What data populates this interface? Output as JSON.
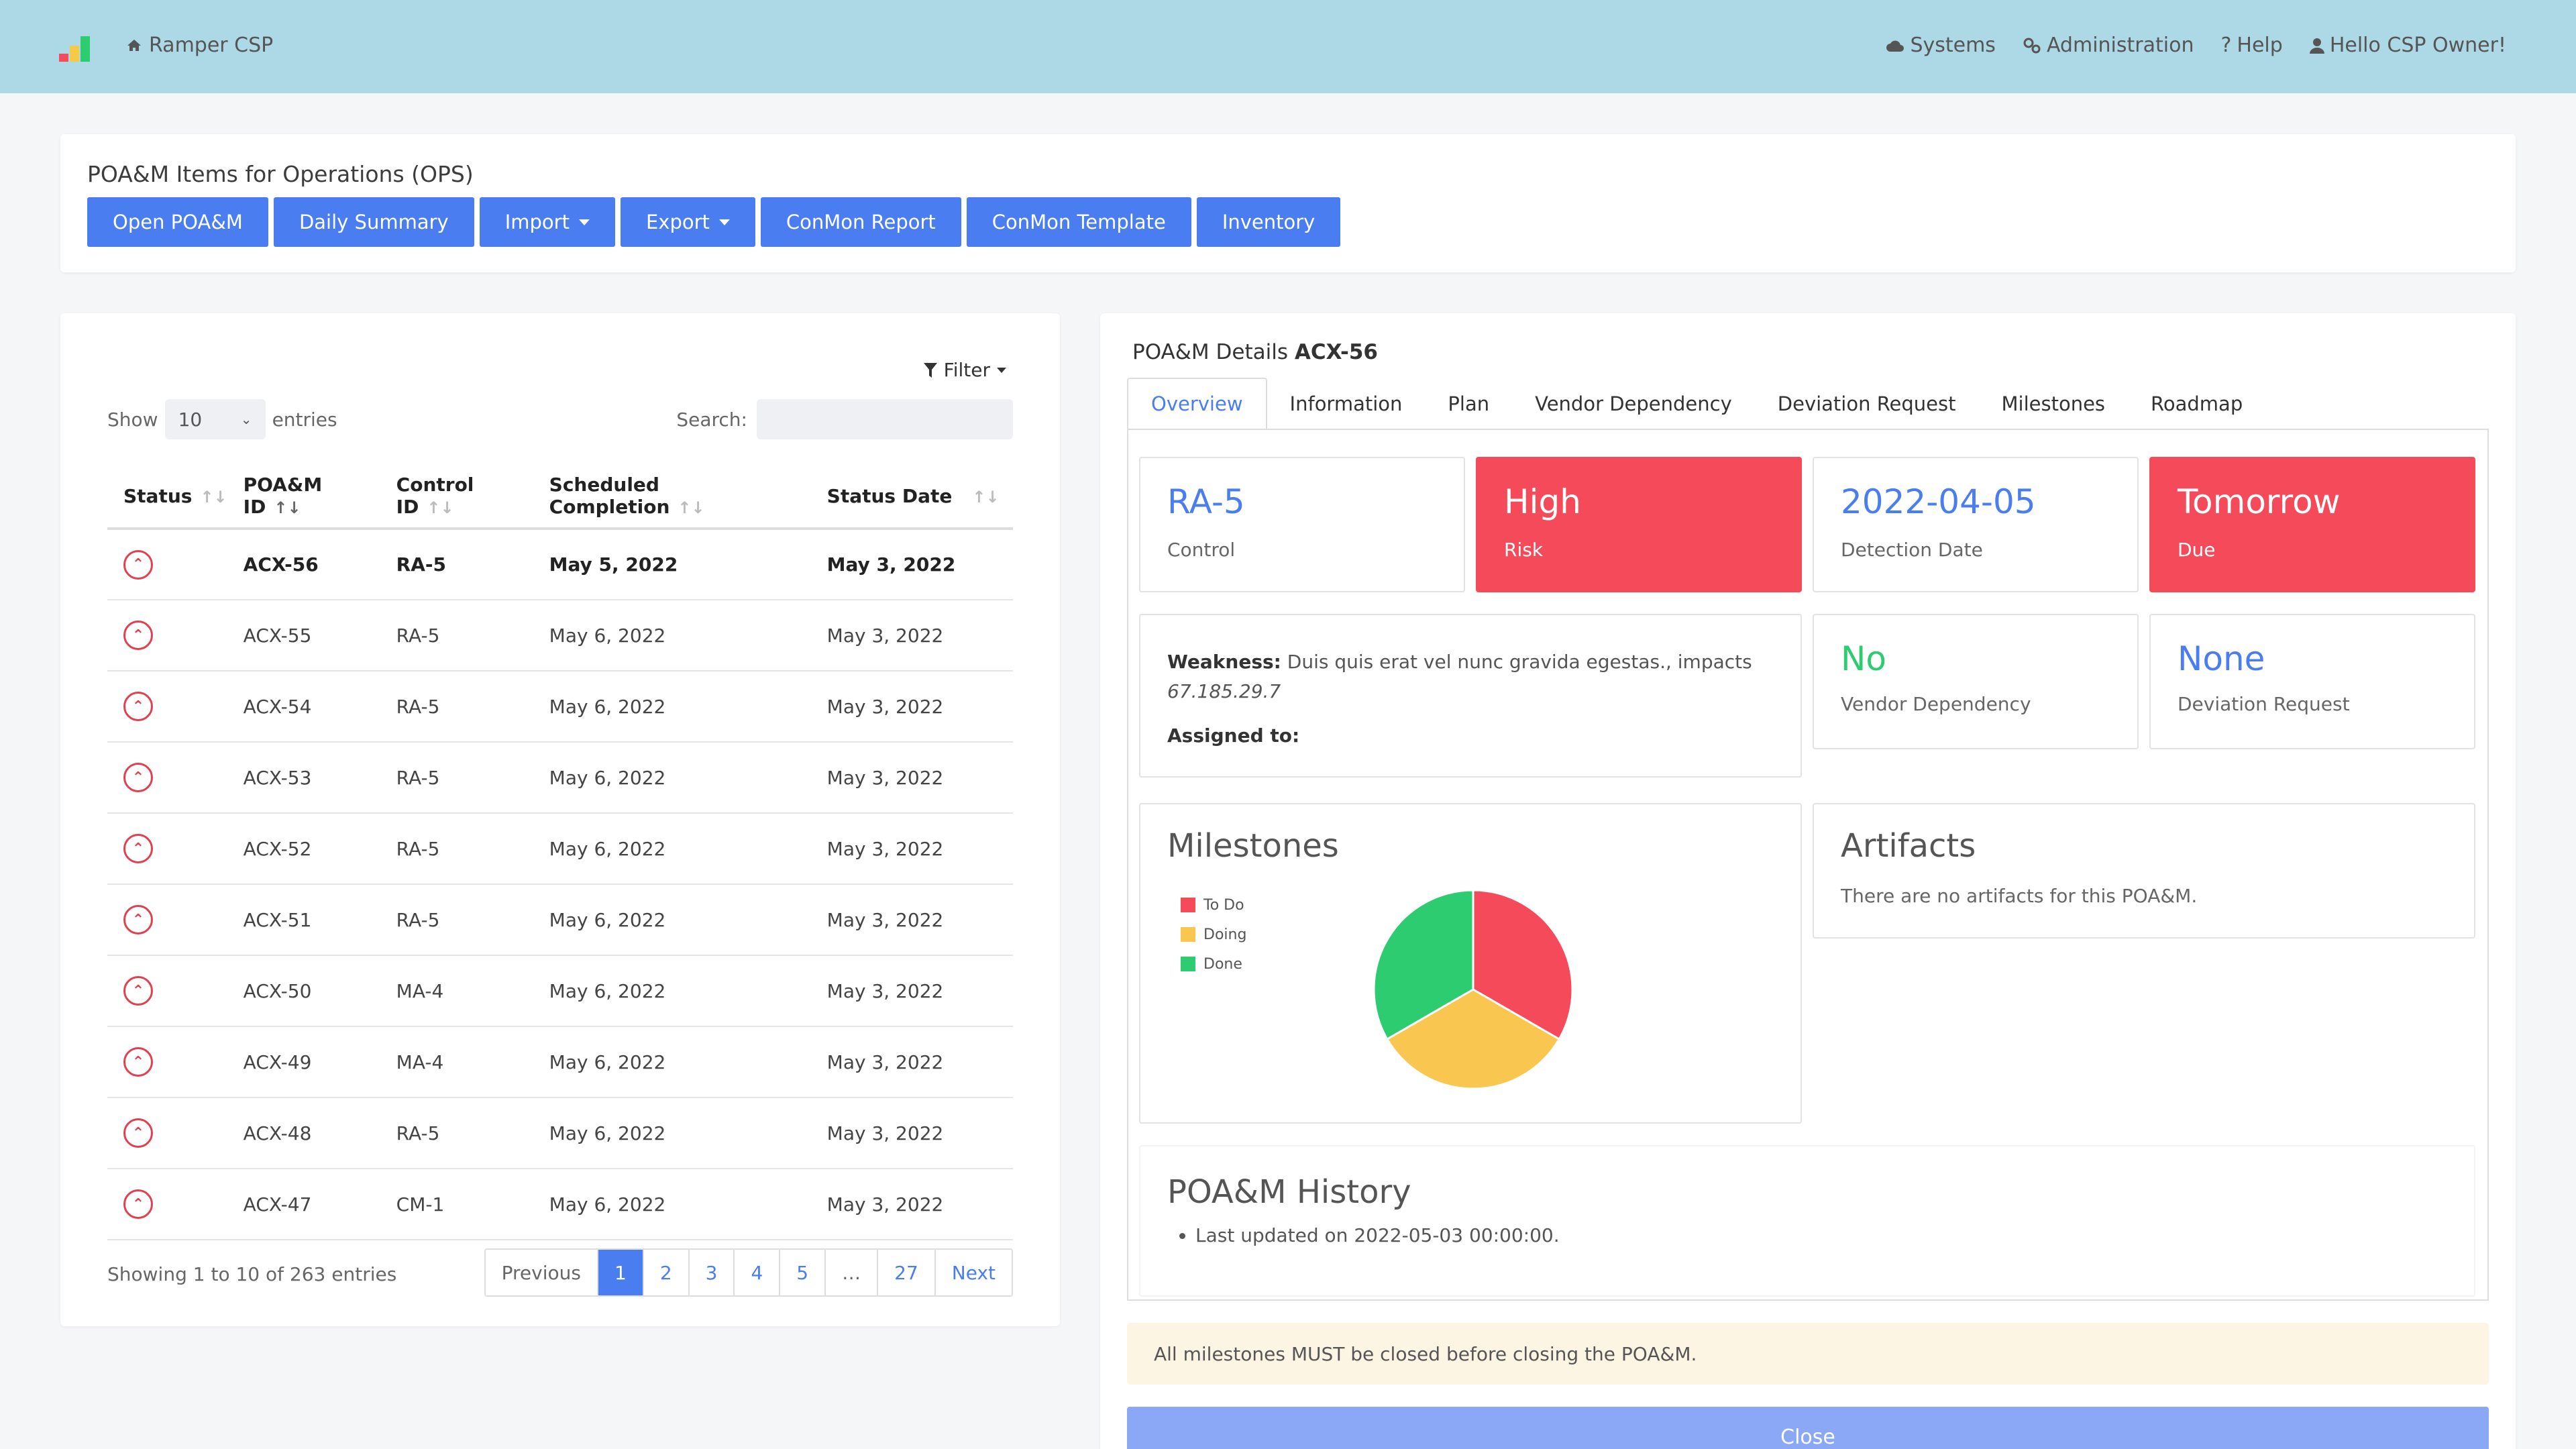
{
  "topbar": {
    "brand": "Ramper CSP",
    "nav": [
      {
        "label": "Systems",
        "icon": "cloud-icon"
      },
      {
        "label": "Administration",
        "icon": "gears-icon"
      },
      {
        "label": "Help",
        "icon": "question-icon"
      },
      {
        "label": "Hello CSP Owner!",
        "icon": "user-icon"
      }
    ],
    "logo_colors": [
      "#f54a5a",
      "#f7c948",
      "#2ecc71"
    ]
  },
  "header": {
    "title": "POA&M Items for Operations (OPS)",
    "buttons": [
      "Open POA&M",
      "Daily Summary",
      "Import",
      "Export",
      "ConMon Report",
      "ConMon Template",
      "Inventory"
    ]
  },
  "list": {
    "filter_label": "Filter",
    "show_label": "Show",
    "entries_label": "entries",
    "page_size": "10",
    "search_label": "Search:",
    "columns": [
      "Status",
      "POA&M ID",
      "Control ID",
      "Scheduled Completion",
      "Status Date"
    ],
    "rows": [
      {
        "id": "ACX-56",
        "control": "RA-5",
        "scheduled": "May 5, 2022",
        "status_date": "May 3, 2022"
      },
      {
        "id": "ACX-55",
        "control": "RA-5",
        "scheduled": "May 6, 2022",
        "status_date": "May 3, 2022"
      },
      {
        "id": "ACX-54",
        "control": "RA-5",
        "scheduled": "May 6, 2022",
        "status_date": "May 3, 2022"
      },
      {
        "id": "ACX-53",
        "control": "RA-5",
        "scheduled": "May 6, 2022",
        "status_date": "May 3, 2022"
      },
      {
        "id": "ACX-52",
        "control": "RA-5",
        "scheduled": "May 6, 2022",
        "status_date": "May 3, 2022"
      },
      {
        "id": "ACX-51",
        "control": "RA-5",
        "scheduled": "May 6, 2022",
        "status_date": "May 3, 2022"
      },
      {
        "id": "ACX-50",
        "control": "MA-4",
        "scheduled": "May 6, 2022",
        "status_date": "May 3, 2022"
      },
      {
        "id": "ACX-49",
        "control": "MA-4",
        "scheduled": "May 6, 2022",
        "status_date": "May 3, 2022"
      },
      {
        "id": "ACX-48",
        "control": "RA-5",
        "scheduled": "May 6, 2022",
        "status_date": "May 3, 2022"
      },
      {
        "id": "ACX-47",
        "control": "CM-1",
        "scheduled": "May 6, 2022",
        "status_date": "May 3, 2022"
      }
    ],
    "showing": "Showing 1 to 10 of 263 entries",
    "pager": [
      "Previous",
      "1",
      "2",
      "3",
      "4",
      "5",
      "…",
      "27",
      "Next"
    ],
    "active_page": "1"
  },
  "details": {
    "title_prefix": "POA&M Details",
    "poam_id": "ACX-56",
    "tabs": [
      "Overview",
      "Information",
      "Plan",
      "Vendor Dependency",
      "Deviation Request",
      "Milestones",
      "Roadmap"
    ],
    "active_tab": "Overview",
    "tiles": [
      {
        "value": "RA-5",
        "label": "Control",
        "style": "plain",
        "color": "#4a7df0"
      },
      {
        "value": "High",
        "label": "Risk",
        "style": "red"
      },
      {
        "value": "2022-04-05",
        "label": "Detection Date",
        "style": "plain",
        "color": "#4a7df0"
      },
      {
        "value": "Tomorrow",
        "label": "Due",
        "style": "red"
      }
    ],
    "weakness_label": "Weakness:",
    "weakness_text": "Duis quis erat vel nunc gravida egestas., impacts",
    "weakness_ip": "67.185.29.7",
    "assigned_label": "Assigned to:",
    "vendor": {
      "value": "No",
      "label": "Vendor Dependency",
      "color": "#2ecc71"
    },
    "deviation": {
      "value": "None",
      "label": "Deviation Request",
      "color": "#4a7df0"
    },
    "milestones_title": "Milestones",
    "artifacts_title": "Artifacts",
    "artifacts_text": "There are no artifacts for this POA&M.",
    "history_title": "POA&M History",
    "history_items": [
      "Last updated on 2022-05-03 00:00:00."
    ],
    "alert": "All milestones MUST be closed before closing the POA&M.",
    "close_label": "Close"
  },
  "chart_data": {
    "type": "pie",
    "title": "Milestones",
    "labels": [
      "To Do",
      "Doing",
      "Done"
    ],
    "values": [
      1,
      1,
      1
    ],
    "colors": [
      "#f54a5a",
      "#f9c74f",
      "#2ecc71"
    ],
    "legend_position": "top-left"
  }
}
